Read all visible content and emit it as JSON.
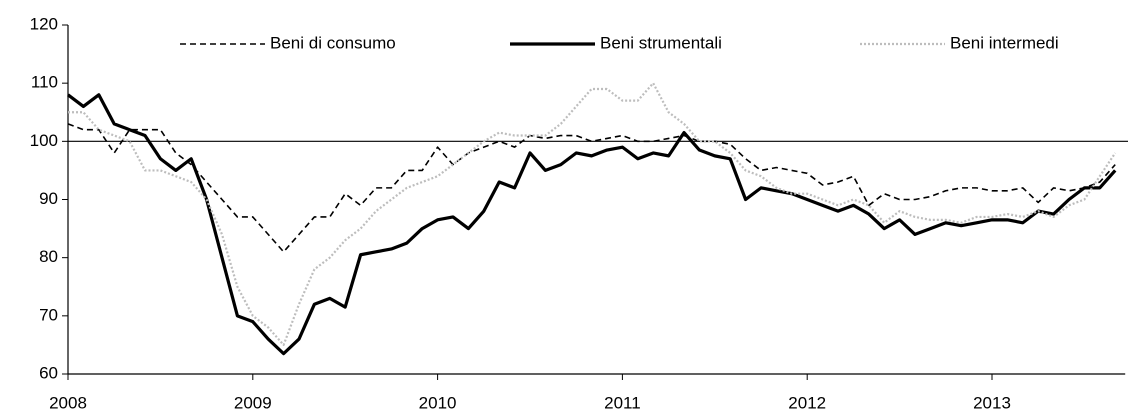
{
  "chart_data": {
    "type": "line",
    "categories": [
      "2008",
      null,
      null,
      null,
      null,
      null,
      null,
      null,
      null,
      null,
      null,
      null,
      "2009",
      null,
      null,
      null,
      null,
      null,
      null,
      null,
      null,
      null,
      null,
      null,
      "2010",
      null,
      null,
      null,
      null,
      null,
      null,
      null,
      null,
      null,
      null,
      null,
      "2011",
      null,
      null,
      null,
      null,
      null,
      null,
      null,
      null,
      null,
      null,
      null,
      "2012",
      null,
      null,
      null,
      null,
      null,
      null,
      null,
      null,
      null,
      null,
      null,
      "2013",
      null,
      null,
      null,
      null,
      null,
      null,
      null,
      null
    ],
    "series": [
      {
        "name": "Beni di consumo",
        "color": "#000000",
        "dash": "6,4",
        "width": 1.6,
        "values": [
          103,
          102,
          102,
          98,
          102,
          102,
          102,
          98,
          96,
          93,
          90,
          87,
          87,
          84,
          81,
          84,
          87,
          87,
          91,
          89,
          92,
          92,
          95,
          95,
          99,
          96,
          98,
          99,
          100,
          99,
          101,
          100.5,
          101,
          101,
          100,
          100.5,
          101,
          100,
          100,
          100.5,
          101,
          100,
          100,
          99.5,
          97,
          95,
          95.5,
          95,
          94.5,
          92.5,
          93,
          94,
          89,
          91,
          90,
          90,
          90.5,
          91.5,
          92,
          92,
          91.5,
          91.5,
          92,
          89.5,
          92,
          91.5,
          92,
          93,
          96
        ]
      },
      {
        "name": "Beni strumentali",
        "color": "#000000",
        "dash": "none",
        "width": 3.2,
        "values": [
          108,
          106,
          108,
          103,
          102,
          101,
          97,
          95,
          97,
          90,
          80,
          70,
          69,
          66,
          63.5,
          66,
          72,
          73,
          71.5,
          80.5,
          81,
          81.5,
          82.5,
          85,
          86.5,
          87,
          85,
          88,
          93,
          92,
          98,
          95,
          96,
          98,
          97.5,
          98.5,
          99,
          97,
          98,
          97.5,
          101.5,
          98.5,
          97.5,
          97,
          90,
          92,
          91.5,
          91,
          90,
          89,
          88,
          89,
          87.5,
          85,
          86.5,
          84,
          85,
          86,
          85.5,
          86,
          86.5,
          86.5,
          86,
          88,
          87.5,
          90,
          92,
          92,
          95
        ]
      },
      {
        "name": "Beni intermedi",
        "color": "#bdbdbd",
        "dash": "2,2",
        "width": 2.2,
        "values": [
          105,
          105,
          102,
          101,
          100,
          95,
          95,
          94,
          93,
          90,
          84,
          75,
          70,
          68,
          65,
          72,
          78,
          80,
          83,
          85,
          88,
          90,
          92,
          93,
          94,
          96,
          98,
          100,
          101.5,
          101,
          101,
          101,
          103,
          106,
          109,
          109,
          107,
          107,
          110,
          105,
          103,
          100,
          100,
          98,
          95,
          94,
          92,
          91,
          91,
          90,
          89,
          90,
          89,
          86,
          88,
          87,
          86.5,
          86.5,
          86,
          87,
          87,
          87.5,
          87,
          88,
          87,
          89,
          90,
          94,
          98
        ]
      }
    ],
    "ylim": [
      60,
      120
    ],
    "yticks": [
      60,
      70,
      80,
      90,
      100,
      110,
      120
    ],
    "reference_line": 100,
    "grid": false
  }
}
